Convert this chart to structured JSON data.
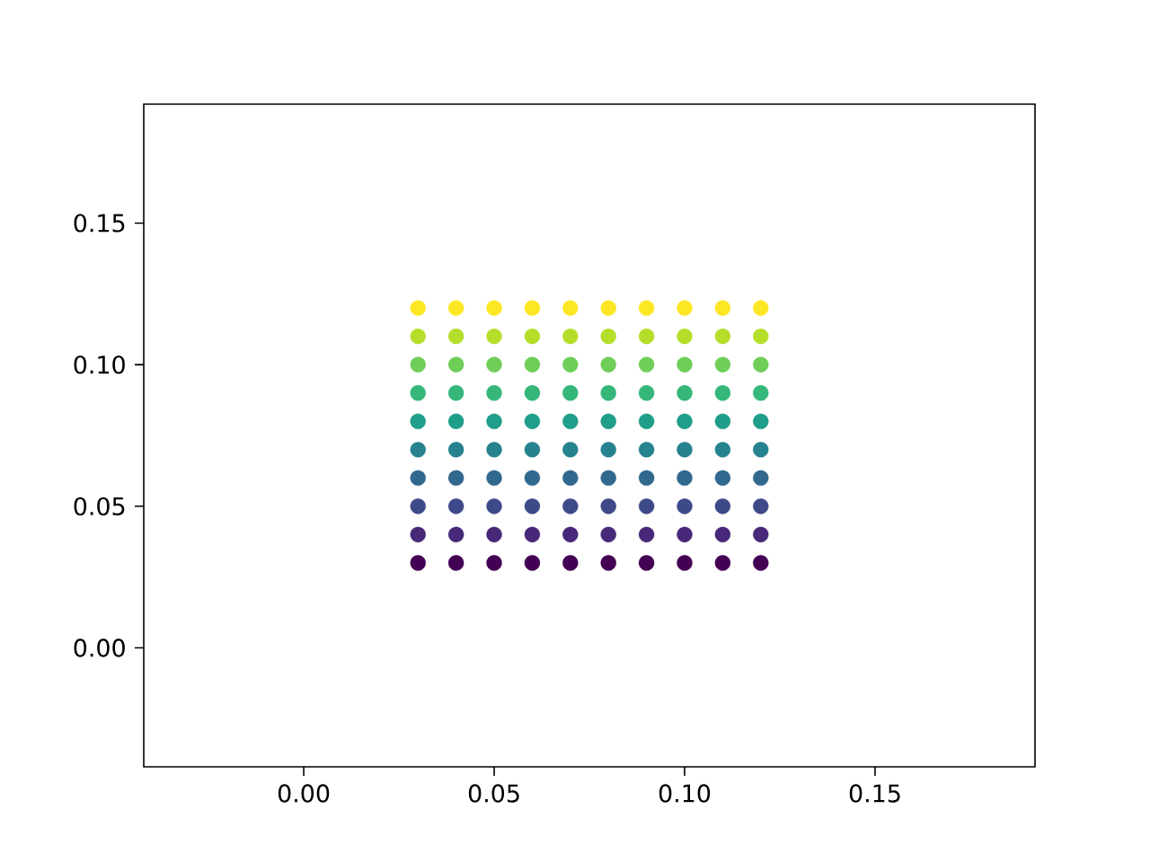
{
  "chart_data": {
    "type": "scatter",
    "x": [
      0.03,
      0.04,
      0.05,
      0.06,
      0.07,
      0.08,
      0.09,
      0.1,
      0.11,
      0.12,
      0.03,
      0.04,
      0.05,
      0.06,
      0.07,
      0.08,
      0.09,
      0.1,
      0.11,
      0.12,
      0.03,
      0.04,
      0.05,
      0.06,
      0.07,
      0.08,
      0.09,
      0.1,
      0.11,
      0.12,
      0.03,
      0.04,
      0.05,
      0.06,
      0.07,
      0.08,
      0.09,
      0.1,
      0.11,
      0.12,
      0.03,
      0.04,
      0.05,
      0.06,
      0.07,
      0.08,
      0.09,
      0.1,
      0.11,
      0.12,
      0.03,
      0.04,
      0.05,
      0.06,
      0.07,
      0.08,
      0.09,
      0.1,
      0.11,
      0.12,
      0.03,
      0.04,
      0.05,
      0.06,
      0.07,
      0.08,
      0.09,
      0.1,
      0.11,
      0.12,
      0.03,
      0.04,
      0.05,
      0.06,
      0.07,
      0.08,
      0.09,
      0.1,
      0.11,
      0.12,
      0.03,
      0.04,
      0.05,
      0.06,
      0.07,
      0.08,
      0.09,
      0.1,
      0.11,
      0.12,
      0.03,
      0.04,
      0.05,
      0.06,
      0.07,
      0.08,
      0.09,
      0.1,
      0.11,
      0.12
    ],
    "values": [
      0.03,
      0.03,
      0.03,
      0.03,
      0.03,
      0.03,
      0.03,
      0.03,
      0.03,
      0.03,
      0.04,
      0.04,
      0.04,
      0.04,
      0.04,
      0.04,
      0.04,
      0.04,
      0.04,
      0.04,
      0.05,
      0.05,
      0.05,
      0.05,
      0.05,
      0.05,
      0.05,
      0.05,
      0.05,
      0.05,
      0.06,
      0.06,
      0.06,
      0.06,
      0.06,
      0.06,
      0.06,
      0.06,
      0.06,
      0.06,
      0.07,
      0.07,
      0.07,
      0.07,
      0.07,
      0.07,
      0.07,
      0.07,
      0.07,
      0.07,
      0.08,
      0.08,
      0.08,
      0.08,
      0.08,
      0.08,
      0.08,
      0.08,
      0.08,
      0.08,
      0.09,
      0.09,
      0.09,
      0.09,
      0.09,
      0.09,
      0.09,
      0.09,
      0.09,
      0.09,
      0.1,
      0.1,
      0.1,
      0.1,
      0.1,
      0.1,
      0.1,
      0.1,
      0.1,
      0.1,
      0.11,
      0.11,
      0.11,
      0.11,
      0.11,
      0.11,
      0.11,
      0.11,
      0.11,
      0.11,
      0.12,
      0.12,
      0.12,
      0.12,
      0.12,
      0.12,
      0.12,
      0.12,
      0.12,
      0.12
    ],
    "colors": [
      "#440154",
      "#440154",
      "#440154",
      "#440154",
      "#440154",
      "#440154",
      "#440154",
      "#440154",
      "#440154",
      "#440154",
      "#482878",
      "#482878",
      "#482878",
      "#482878",
      "#482878",
      "#482878",
      "#482878",
      "#482878",
      "#482878",
      "#482878",
      "#3e4989",
      "#3e4989",
      "#3e4989",
      "#3e4989",
      "#3e4989",
      "#3e4989",
      "#3e4989",
      "#3e4989",
      "#3e4989",
      "#3e4989",
      "#31688e",
      "#31688e",
      "#31688e",
      "#31688e",
      "#31688e",
      "#31688e",
      "#31688e",
      "#31688e",
      "#31688e",
      "#31688e",
      "#26828e",
      "#26828e",
      "#26828e",
      "#26828e",
      "#26828e",
      "#26828e",
      "#26828e",
      "#26828e",
      "#26828e",
      "#26828e",
      "#1f9e89",
      "#1f9e89",
      "#1f9e89",
      "#1f9e89",
      "#1f9e89",
      "#1f9e89",
      "#1f9e89",
      "#1f9e89",
      "#1f9e89",
      "#1f9e89",
      "#35b779",
      "#35b779",
      "#35b779",
      "#35b779",
      "#35b779",
      "#35b779",
      "#35b779",
      "#35b779",
      "#35b779",
      "#35b779",
      "#6ece58",
      "#6ece58",
      "#6ece58",
      "#6ece58",
      "#6ece58",
      "#6ece58",
      "#6ece58",
      "#6ece58",
      "#6ece58",
      "#6ece58",
      "#b5de2b",
      "#b5de2b",
      "#b5de2b",
      "#b5de2b",
      "#b5de2b",
      "#b5de2b",
      "#b5de2b",
      "#b5de2b",
      "#b5de2b",
      "#b5de2b",
      "#fde725",
      "#fde725",
      "#fde725",
      "#fde725",
      "#fde725",
      "#fde725",
      "#fde725",
      "#fde725",
      "#fde725",
      "#fde725"
    ],
    "xlim": [
      -0.042,
      0.192
    ],
    "ylim": [
      -0.042,
      0.192
    ],
    "xticks": [
      {
        "value": 0,
        "label": "0.00"
      },
      {
        "value": 0.05,
        "label": "0.05"
      },
      {
        "value": 0.1,
        "label": "0.10"
      },
      {
        "value": 0.15,
        "label": "0.15"
      }
    ],
    "yticks": [
      {
        "value": 0,
        "label": "0.00"
      },
      {
        "value": 0.05,
        "label": "0.05"
      },
      {
        "value": 0.1,
        "label": "0.10"
      },
      {
        "value": 0.15,
        "label": "0.15"
      }
    ],
    "grid": false
  }
}
